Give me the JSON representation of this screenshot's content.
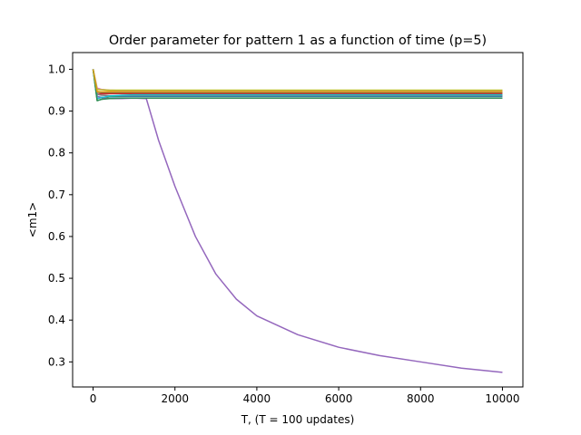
{
  "chart_data": {
    "type": "line",
    "title": "Order parameter for pattern 1 as a function of time (p=5)",
    "xlabel": "T,  (T = 100 updates)",
    "ylabel": "<m1>",
    "xlim": [
      -500,
      10500
    ],
    "ylim": [
      0.24,
      1.04
    ],
    "xticks": [
      0,
      2000,
      4000,
      6000,
      8000,
      10000
    ],
    "yticks": [
      0.3,
      0.4,
      0.5,
      0.6,
      0.7,
      0.8,
      0.9,
      1.0
    ],
    "ytick_labels": [
      "0.3",
      "0.4",
      "0.5",
      "0.6",
      "0.7",
      "0.8",
      "0.9",
      "1.0"
    ],
    "grid": false,
    "legend": "none",
    "x": [
      0,
      100,
      200,
      400,
      700,
      1000,
      1300,
      1600,
      2000,
      2500,
      3000,
      3500,
      4000,
      5000,
      6000,
      7000,
      8000,
      9000,
      10000
    ],
    "series": [
      {
        "color": "#1f77b4",
        "values": [
          1.0,
          0.935,
          0.933,
          0.934,
          0.935,
          0.935,
          0.935,
          0.935,
          0.935,
          0.935,
          0.935,
          0.935,
          0.935,
          0.935,
          0.935,
          0.935,
          0.935,
          0.935,
          0.935
        ]
      },
      {
        "color": "#ff7f0e",
        "values": [
          1.0,
          0.947,
          0.946,
          0.947,
          0.947,
          0.947,
          0.947,
          0.947,
          0.947,
          0.947,
          0.947,
          0.947,
          0.947,
          0.947,
          0.947,
          0.947,
          0.947,
          0.947,
          0.947
        ]
      },
      {
        "color": "#2ca02c",
        "values": [
          1.0,
          0.925,
          0.928,
          0.935,
          0.937,
          0.938,
          0.938,
          0.938,
          0.938,
          0.938,
          0.938,
          0.938,
          0.938,
          0.938,
          0.938,
          0.938,
          0.938,
          0.938,
          0.938
        ]
      },
      {
        "color": "#d62728",
        "values": [
          1.0,
          0.94,
          0.941,
          0.942,
          0.942,
          0.942,
          0.942,
          0.942,
          0.942,
          0.942,
          0.942,
          0.942,
          0.942,
          0.942,
          0.942,
          0.942,
          0.942,
          0.942,
          0.942
        ]
      },
      {
        "color": "#9467bd",
        "values": [
          1.0,
          0.935,
          0.932,
          0.93,
          0.93,
          0.931,
          0.93,
          0.83,
          0.72,
          0.6,
          0.51,
          0.45,
          0.41,
          0.365,
          0.335,
          0.315,
          0.3,
          0.285,
          0.275
        ]
      },
      {
        "color": "#8c564b",
        "values": [
          1.0,
          0.945,
          0.944,
          0.944,
          0.944,
          0.944,
          0.944,
          0.944,
          0.944,
          0.944,
          0.944,
          0.944,
          0.944,
          0.944,
          0.944,
          0.944,
          0.944,
          0.944,
          0.944
        ]
      },
      {
        "color": "#e377c2",
        "values": [
          1.0,
          0.955,
          0.952,
          0.95,
          0.949,
          0.949,
          0.949,
          0.949,
          0.949,
          0.949,
          0.949,
          0.949,
          0.949,
          0.949,
          0.949,
          0.949,
          0.949,
          0.949,
          0.949
        ]
      },
      {
        "color": "#7f7f7f",
        "values": [
          1.0,
          0.94,
          0.938,
          0.937,
          0.937,
          0.937,
          0.937,
          0.937,
          0.937,
          0.937,
          0.937,
          0.937,
          0.937,
          0.937,
          0.937,
          0.937,
          0.937,
          0.937,
          0.937
        ]
      },
      {
        "color": "#bcbd22",
        "values": [
          1.0,
          0.952,
          0.951,
          0.95,
          0.95,
          0.95,
          0.95,
          0.95,
          0.95,
          0.95,
          0.95,
          0.95,
          0.95,
          0.95,
          0.95,
          0.95,
          0.95,
          0.95,
          0.95
        ]
      },
      {
        "color": "#17becf",
        "values": [
          1.0,
          0.93,
          0.932,
          0.936,
          0.938,
          0.939,
          0.939,
          0.939,
          0.939,
          0.939,
          0.939,
          0.939,
          0.939,
          0.939,
          0.939,
          0.939,
          0.939,
          0.939,
          0.939
        ]
      },
      {
        "color": "#2e8b57",
        "values": [
          1.0,
          0.925,
          0.928,
          0.93,
          0.931,
          0.931,
          0.931,
          0.931,
          0.931,
          0.931,
          0.931,
          0.931,
          0.931,
          0.931,
          0.931,
          0.931,
          0.931,
          0.931,
          0.931
        ]
      },
      {
        "color": "#d4a017",
        "values": [
          1.0,
          0.946,
          0.946,
          0.946,
          0.946,
          0.946,
          0.946,
          0.946,
          0.946,
          0.946,
          0.946,
          0.946,
          0.946,
          0.946,
          0.946,
          0.946,
          0.946,
          0.946,
          0.946
        ]
      }
    ]
  }
}
